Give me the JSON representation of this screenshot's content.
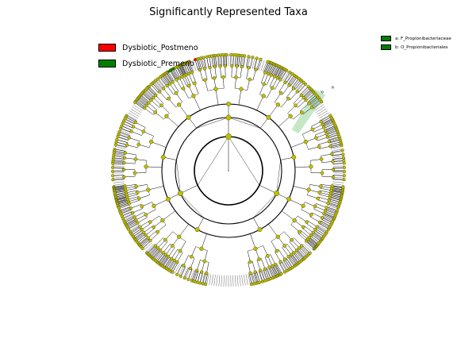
{
  "title": "Significantly Represented Taxa",
  "legend_groups": [
    {
      "label": "Dysbiotic_Postmeno",
      "color": "#ff0000"
    },
    {
      "label": "Dysbiotic_Premeno",
      "color": "#008000"
    }
  ],
  "legend_taxa": [
    {
      "label": "a: F_Propionibacteriaceae",
      "color": "#008000"
    },
    {
      "label": "b: O_Propionibacteriales",
      "color": "#008000"
    }
  ],
  "clade_markers": [
    "b",
    "a"
  ],
  "colors": {
    "node_fill": "#bfbf00",
    "node_stroke": "#555500",
    "highlight_band": "#7fc97f",
    "branch": "#000000"
  }
}
